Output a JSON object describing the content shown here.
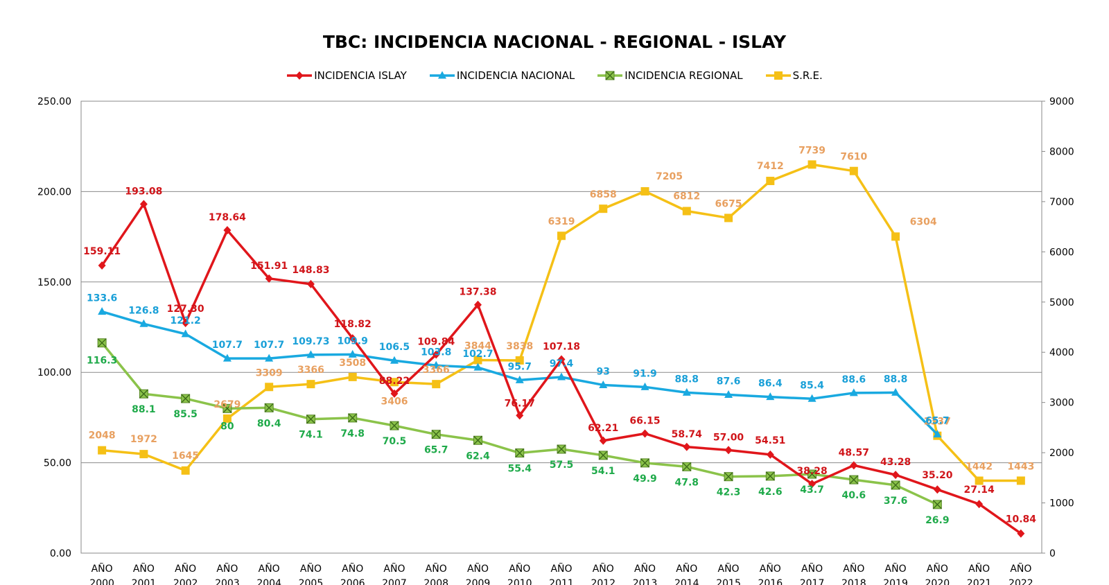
{
  "chart_data": {
    "type": "line",
    "title": "TBC: INCIDENCIA NACIONAL - REGIONAL - ISLAY",
    "categories": [
      "AÑO 2000",
      "AÑO 2001",
      "AÑO 2002",
      "AÑO 2003",
      "AÑO 2004",
      "AÑO 2005",
      "AÑO 2006",
      "AÑO 2007",
      "AÑO 2008",
      "AÑO 2009",
      "AÑO 2010",
      "AÑO 2011",
      "AÑO 2012",
      "AÑO 2013",
      "AÑO 2014",
      "AÑO 2015",
      "AÑO 2016",
      "AÑO 2017",
      "AÑO 2018",
      "AÑO 2019",
      "AÑO 2020",
      "AÑO 2021",
      "AÑO 2022"
    ],
    "category_lines": [
      [
        "AÑO",
        "2000"
      ],
      [
        "AÑO",
        "2001"
      ],
      [
        "AÑO",
        "2002"
      ],
      [
        "AÑO",
        "2003"
      ],
      [
        "AÑO",
        "2004"
      ],
      [
        "AÑO",
        "2005"
      ],
      [
        "AÑO",
        "2006"
      ],
      [
        "AÑO",
        "2007"
      ],
      [
        "AÑO",
        "2008"
      ],
      [
        "AÑO",
        "2009"
      ],
      [
        "AÑO",
        "2010"
      ],
      [
        "AÑO",
        "2011"
      ],
      [
        "AÑO",
        "2012"
      ],
      [
        "AÑO",
        "2013"
      ],
      [
        "AÑO",
        "2014"
      ],
      [
        "AÑO",
        "2015"
      ],
      [
        "AÑO",
        "2016"
      ],
      [
        "AÑO",
        "2017"
      ],
      [
        "AÑO",
        "2018"
      ],
      [
        "AÑO",
        "2019"
      ],
      [
        "AÑO",
        "2020"
      ],
      [
        "AÑO",
        "2021"
      ],
      [
        "AÑO",
        "2022"
      ]
    ],
    "y_left": {
      "min": 0,
      "max": 250,
      "ticks": [
        "0.00",
        "50.00",
        "100.00",
        "150.00",
        "200.00",
        "250.00"
      ]
    },
    "y_right": {
      "min": 0,
      "max": 9000,
      "ticks": [
        "0",
        "1000",
        "2000",
        "3000",
        "4000",
        "5000",
        "6000",
        "7000",
        "8000",
        "9000"
      ]
    },
    "grid": true,
    "legend_position": "top",
    "series": [
      {
        "name": "INCIDENCIA ISLAY",
        "axis": "left",
        "color": "#e0161b",
        "label_color": "#d0151a",
        "marker": "diamond",
        "values": [
          159.11,
          193.08,
          127.3,
          178.64,
          151.91,
          148.83,
          118.82,
          88.22,
          109.84,
          137.38,
          76.17,
          107.18,
          62.21,
          66.15,
          58.74,
          57.0,
          54.51,
          38.28,
          48.57,
          43.28,
          35.2,
          27.14,
          10.84
        ],
        "labels": [
          "159.11",
          "193.08",
          "127.30",
          "178.64",
          "151.91",
          "148.83",
          "118.82",
          "88.22",
          "109.84",
          "137.38",
          "76.17",
          "107.18",
          "62.21",
          "66.15",
          "58.74",
          "57.00",
          "54.51",
          "38.28",
          "48.57",
          "43.28",
          "35.20",
          "27.14",
          "10.84"
        ]
      },
      {
        "name": "INCIDENCIA NACIONAL",
        "axis": "left",
        "color": "#19a9e0",
        "label_color": "#1aa0d8",
        "marker": "triangle",
        "values": [
          133.6,
          126.8,
          121.2,
          107.7,
          107.7,
          109.73,
          109.9,
          106.5,
          103.8,
          102.7,
          95.7,
          97.4,
          93,
          91.9,
          88.8,
          87.6,
          86.4,
          85.4,
          88.6,
          88.8,
          65.7,
          null,
          null
        ],
        "labels": [
          "133.6",
          "126.8",
          "121.2",
          "107.7",
          "107.7",
          "109.73",
          "109.9",
          "106.5",
          "103.8",
          "102.7",
          "95.7",
          "97.4",
          "93",
          "91.9",
          "88.8",
          "87.6",
          "86.4",
          "85.4",
          "88.6",
          "88.8",
          "65.7",
          "",
          ""
        ]
      },
      {
        "name": "INCIDENCIA REGIONAL",
        "axis": "left",
        "color": "#8bc34a",
        "label_color": "#1faa4a",
        "marker": "square-x",
        "values": [
          116.3,
          88.1,
          85.5,
          80,
          80.4,
          74.1,
          74.8,
          70.5,
          65.7,
          62.4,
          55.4,
          57.5,
          54.1,
          49.9,
          47.8,
          42.3,
          42.6,
          43.7,
          40.6,
          37.6,
          26.9,
          null,
          null
        ],
        "labels": [
          "116.3",
          "88.1",
          "85.5",
          "80",
          "80.4",
          "74.1",
          "74.8",
          "70.5",
          "65.7",
          "62.4",
          "55.4",
          "57.5",
          "54.1",
          "49.9",
          "47.8",
          "42.3",
          "42.6",
          "43.7",
          "40.6",
          "37.6",
          "26.9",
          "",
          ""
        ]
      },
      {
        "name": "S.R.E.",
        "axis": "right",
        "color": "#f5c016",
        "label_color": "#e8a060",
        "marker": "square",
        "values": [
          2048,
          1972,
          1645,
          2679,
          3309,
          3366,
          3508,
          3406,
          3366,
          3844,
          3838,
          6319,
          6858,
          7205,
          6812,
          6675,
          7412,
          7739,
          7610,
          6304,
          2337,
          1442,
          1443
        ],
        "labels": [
          "2048",
          "1972",
          "1645",
          "2679",
          "3309",
          "3366",
          "3508",
          "3406",
          "3366",
          "3844",
          "3838",
          "6319",
          "6858",
          "7205",
          "6812",
          "6675",
          "7412",
          "7739",
          "7610",
          "6304",
          "2337",
          "1442",
          "1443"
        ]
      }
    ]
  }
}
